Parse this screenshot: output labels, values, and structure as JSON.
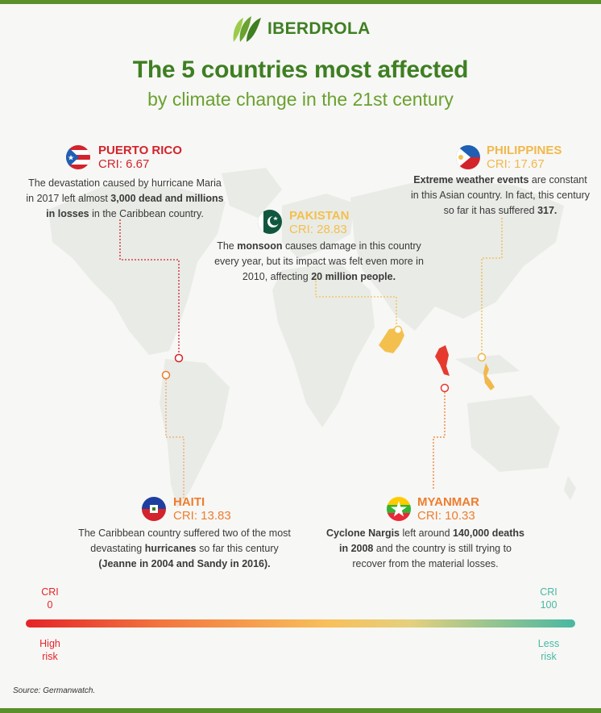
{
  "brand": {
    "name": "IBERDROLA"
  },
  "header": {
    "title": "The 5 countries most affected",
    "subtitle": "by climate change in the 21st century"
  },
  "colors": {
    "brand_green": "#3e7f22",
    "puerto_rico": "#d3232b",
    "pakistan": "#f3c04e",
    "philippines": "#f2b84b",
    "haiti": "#ee7d2e",
    "myanmar": "#ee7d2e",
    "low_cri": "#e52428",
    "high_cri": "#48b8a2"
  },
  "countries": {
    "puerto_rico": {
      "name": "PUERTO RICO",
      "cri": "CRI: 6.67",
      "text_a": "The devastation caused by hurricane Maria",
      "text_b": "in 2017 left almost ",
      "text_b_bold": "3,000 dead and millions",
      "text_c_bold": "in losses",
      "text_c": " in the Caribbean country."
    },
    "pakistan": {
      "name": "PAKISTAN",
      "cri": "CRI: 28.83",
      "text_a": "The ",
      "text_a_bold": "monsoon",
      "text_a_rest": " causes damage in this country",
      "text_b": "every year, but its impact was felt even more in",
      "text_c": "2010, affecting ",
      "text_c_bold": "20 million people."
    },
    "philippines": {
      "name": "PHILIPPINES",
      "cri": "CRI: 17.67",
      "text_a_bold": "Extreme weather events",
      "text_a": " are constant",
      "text_b": "in this Asian country. In fact, this century",
      "text_c": "so far it has suffered ",
      "text_c_bold": "317."
    },
    "haiti": {
      "name": "HAITI",
      "cri": "CRI: 13.83",
      "text_a": "The Caribbean country suffered two of the most",
      "text_b": "devastating ",
      "text_b_bold": "hurricanes",
      "text_b_rest": " so far this century",
      "text_c_bold": "(Jeanne in 2004 and Sandy in 2016)."
    },
    "myanmar": {
      "name": "MYANMAR",
      "cri": "CRI: 10.33",
      "text_a_bold": "Cyclone Nargis",
      "text_a": " left around ",
      "text_a_bold2": "140,000 deaths",
      "text_b_bold": "in 2008",
      "text_b": " and the country is still trying to",
      "text_c": "recover from the material losses."
    }
  },
  "scale": {
    "left_top": "CRI",
    "left_value": "0",
    "right_top": "CRI",
    "right_value": "100",
    "left_risk_1": "High",
    "left_risk_2": "risk",
    "right_risk_1": "Less",
    "right_risk_2": "risk"
  },
  "source": "Source: Germanwatch."
}
